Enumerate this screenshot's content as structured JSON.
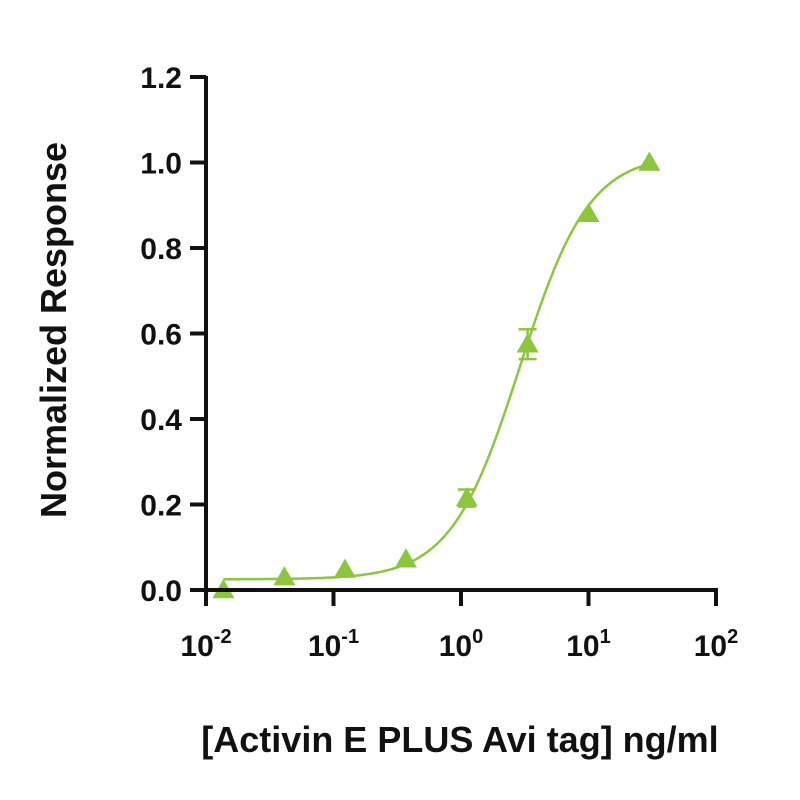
{
  "chart_data": {
    "type": "scatter",
    "title": "",
    "xlabel": "[Activin E PLUS Avi tag] ng/ml",
    "ylabel": "Normalized Response",
    "x_scale": "log",
    "xlim": [
      0.01,
      100
    ],
    "ylim": [
      0,
      1.2
    ],
    "x_ticks": [
      {
        "value": 0.01,
        "base": "10",
        "exponent": "-2"
      },
      {
        "value": 0.1,
        "base": "10",
        "exponent": "-1"
      },
      {
        "value": 1,
        "base": "10",
        "exponent": "0"
      },
      {
        "value": 10,
        "base": "10",
        "exponent": "1"
      },
      {
        "value": 100,
        "base": "10",
        "exponent": "2"
      }
    ],
    "y_ticks": [
      "0.0",
      "0.2",
      "0.4",
      "0.6",
      "0.8",
      "1.0",
      "1.2"
    ],
    "grid": false,
    "color": "#8cc63f",
    "marker": "triangle",
    "series": [
      {
        "x": [
          0.0137,
          0.0412,
          0.123,
          0.37,
          1.11,
          3.33,
          10.0,
          30.0
        ],
        "y": [
          0.0,
          0.03,
          0.048,
          0.072,
          0.215,
          0.575,
          0.88,
          1.0
        ],
        "error": [
          0,
          0,
          0,
          0,
          0.02,
          0.035,
          0,
          0
        ]
      }
    ],
    "fit": {
      "model": "4PL",
      "bottom": 0.025,
      "top": 1.02,
      "ec50": 2.9,
      "hill": 1.6
    }
  }
}
